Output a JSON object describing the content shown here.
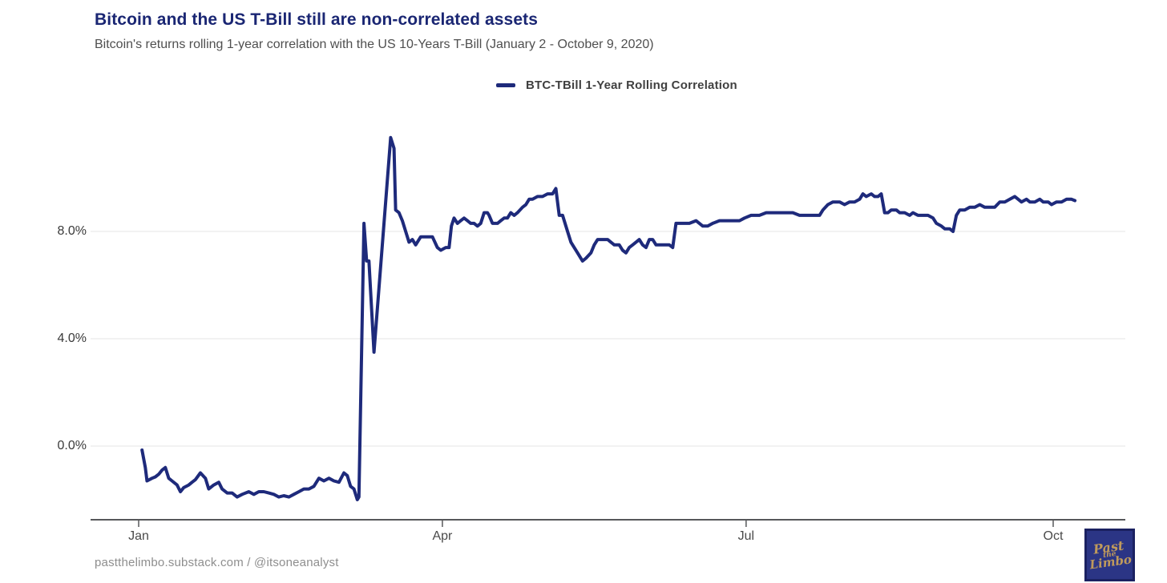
{
  "chart_data": {
    "type": "line",
    "title": "Bitcoin and the US T-Bill still are non-correlated assets",
    "subtitle": "Bitcoin's returns rolling 1-year correlation with the US 10-Years T-Bill (January 2 - October 9, 2020)",
    "x_unit": "day_of_year_2020",
    "xlabel": "",
    "ylabel": "",
    "ylim": [
      -2.8,
      12.1
    ],
    "xlim_days": [
      1,
      296
    ],
    "grid": "horizontal-only",
    "gridline_color": "#e9e9e9",
    "axis_color": "#57585a",
    "line_color": "#1e2a7b",
    "legend_position": "top-center",
    "xticks": [
      {
        "label": "Jan",
        "day": 1
      },
      {
        "label": "Apr",
        "day": 92
      },
      {
        "label": "Jul",
        "day": 183
      },
      {
        "label": "Oct",
        "day": 275
      }
    ],
    "yticks": [
      {
        "label": "8.0%",
        "value": 8
      },
      {
        "label": "4.0%",
        "value": 4
      },
      {
        "label": "0.0%",
        "value": 0
      }
    ],
    "series": [
      {
        "name": "BTC-TBill 1-Year Rolling Correlation",
        "color": "#1e2a7b",
        "points": [
          [
            2,
            -0.15
          ],
          [
            3,
            -0.8
          ],
          [
            3.5,
            -1.3
          ],
          [
            5,
            -1.2
          ],
          [
            6,
            -1.15
          ],
          [
            7,
            -1.05
          ],
          [
            8,
            -0.9
          ],
          [
            9,
            -0.8
          ],
          [
            10,
            -1.2
          ],
          [
            11,
            -1.3
          ],
          [
            12.5,
            -1.45
          ],
          [
            13.5,
            -1.7
          ],
          [
            14.5,
            -1.55
          ],
          [
            16,
            -1.45
          ],
          [
            17,
            -1.35
          ],
          [
            18,
            -1.25
          ],
          [
            19.5,
            -1.0
          ],
          [
            21,
            -1.2
          ],
          [
            22,
            -1.6
          ],
          [
            23.5,
            -1.45
          ],
          [
            25,
            -1.35
          ],
          [
            26,
            -1.6
          ],
          [
            27.5,
            -1.75
          ],
          [
            29,
            -1.75
          ],
          [
            30.5,
            -1.9
          ],
          [
            32,
            -1.8
          ],
          [
            34,
            -1.7
          ],
          [
            35.5,
            -1.8
          ],
          [
            37,
            -1.7
          ],
          [
            38.5,
            -1.7
          ],
          [
            40,
            -1.75
          ],
          [
            41.5,
            -1.8
          ],
          [
            43,
            -1.9
          ],
          [
            44.5,
            -1.85
          ],
          [
            46,
            -1.9
          ],
          [
            47.5,
            -1.8
          ],
          [
            49,
            -1.7
          ],
          [
            50.5,
            -1.6
          ],
          [
            52,
            -1.6
          ],
          [
            53.5,
            -1.5
          ],
          [
            55,
            -1.2
          ],
          [
            56.5,
            -1.3
          ],
          [
            58,
            -1.2
          ],
          [
            59.5,
            -1.3
          ],
          [
            61,
            -1.35
          ],
          [
            62.5,
            -1.0
          ],
          [
            63.5,
            -1.1
          ],
          [
            64.5,
            -1.5
          ],
          [
            65.5,
            -1.6
          ],
          [
            66.5,
            -2.0
          ],
          [
            67,
            -1.9
          ],
          [
            68.5,
            8.3
          ],
          [
            69.3,
            6.9
          ],
          [
            70,
            6.9
          ],
          [
            71.5,
            3.5
          ],
          [
            76.5,
            11.5
          ],
          [
            77.5,
            11.1
          ],
          [
            78,
            8.8
          ],
          [
            79,
            8.7
          ],
          [
            80,
            8.4
          ],
          [
            82,
            7.6
          ],
          [
            83,
            7.7
          ],
          [
            84,
            7.5
          ],
          [
            85.5,
            7.8
          ],
          [
            87,
            7.8
          ],
          [
            89,
            7.8
          ],
          [
            90.5,
            7.4
          ],
          [
            91.5,
            7.3
          ],
          [
            93,
            7.4
          ],
          [
            94,
            7.4
          ],
          [
            94.7,
            8.2
          ],
          [
            95.5,
            8.5
          ],
          [
            96.5,
            8.3
          ],
          [
            97.5,
            8.4
          ],
          [
            98.5,
            8.5
          ],
          [
            99.5,
            8.4
          ],
          [
            100.5,
            8.3
          ],
          [
            101.5,
            8.3
          ],
          [
            102.5,
            8.2
          ],
          [
            103.5,
            8.3
          ],
          [
            104.5,
            8.7
          ],
          [
            105.5,
            8.7
          ],
          [
            106,
            8.6
          ],
          [
            107,
            8.3
          ],
          [
            108.5,
            8.3
          ],
          [
            109.5,
            8.4
          ],
          [
            110.5,
            8.5
          ],
          [
            111.5,
            8.5
          ],
          [
            112.5,
            8.7
          ],
          [
            113.5,
            8.6
          ],
          [
            114.5,
            8.7
          ],
          [
            116,
            8.9
          ],
          [
            117,
            9.0
          ],
          [
            118,
            9.2
          ],
          [
            119,
            9.2
          ],
          [
            120.5,
            9.3
          ],
          [
            122,
            9.3
          ],
          [
            123.5,
            9.4
          ],
          [
            125,
            9.4
          ],
          [
            126,
            9.6
          ],
          [
            127,
            8.6
          ],
          [
            128,
            8.6
          ],
          [
            129.5,
            8.0
          ],
          [
            130.5,
            7.6
          ],
          [
            131.5,
            7.4
          ],
          [
            132.5,
            7.2
          ],
          [
            134,
            6.9
          ],
          [
            135,
            7.0
          ],
          [
            136.5,
            7.2
          ],
          [
            137.5,
            7.5
          ],
          [
            138.5,
            7.7
          ],
          [
            140,
            7.7
          ],
          [
            141.5,
            7.7
          ],
          [
            142.5,
            7.6
          ],
          [
            143.5,
            7.5
          ],
          [
            145,
            7.5
          ],
          [
            146,
            7.3
          ],
          [
            147,
            7.2
          ],
          [
            148,
            7.4
          ],
          [
            149,
            7.5
          ],
          [
            150,
            7.6
          ],
          [
            151,
            7.7
          ],
          [
            152,
            7.5
          ],
          [
            153,
            7.4
          ],
          [
            154,
            7.7
          ],
          [
            155,
            7.7
          ],
          [
            156,
            7.5
          ],
          [
            157,
            7.5
          ],
          [
            158.5,
            7.5
          ],
          [
            160,
            7.5
          ],
          [
            161,
            7.4
          ],
          [
            162,
            8.3
          ],
          [
            164,
            8.3
          ],
          [
            166,
            8.3
          ],
          [
            168,
            8.4
          ],
          [
            170,
            8.2
          ],
          [
            171.5,
            8.2
          ],
          [
            173,
            8.3
          ],
          [
            175,
            8.4
          ],
          [
            177,
            8.4
          ],
          [
            179,
            8.4
          ],
          [
            181,
            8.4
          ],
          [
            182.5,
            8.5
          ],
          [
            184.5,
            8.6
          ],
          [
            187,
            8.6
          ],
          [
            189,
            8.7
          ],
          [
            191,
            8.7
          ],
          [
            193,
            8.7
          ],
          [
            195,
            8.7
          ],
          [
            197,
            8.7
          ],
          [
            199,
            8.6
          ],
          [
            201,
            8.6
          ],
          [
            203,
            8.6
          ],
          [
            205,
            8.6
          ],
          [
            206,
            8.8
          ],
          [
            207.5,
            9.0
          ],
          [
            209,
            9.1
          ],
          [
            211,
            9.1
          ],
          [
            212.5,
            9.0
          ],
          [
            214,
            9.1
          ],
          [
            215.5,
            9.1
          ],
          [
            217,
            9.2
          ],
          [
            218,
            9.4
          ],
          [
            219,
            9.3
          ],
          [
            220.5,
            9.4
          ],
          [
            221.5,
            9.3
          ],
          [
            222.5,
            9.3
          ],
          [
            223.5,
            9.4
          ],
          [
            224.5,
            8.7
          ],
          [
            225.5,
            8.7
          ],
          [
            226.5,
            8.8
          ],
          [
            228,
            8.8
          ],
          [
            229,
            8.7
          ],
          [
            230.5,
            8.7
          ],
          [
            232,
            8.6
          ],
          [
            233,
            8.7
          ],
          [
            234.5,
            8.6
          ],
          [
            236,
            8.6
          ],
          [
            237.5,
            8.6
          ],
          [
            239,
            8.5
          ],
          [
            240,
            8.3
          ],
          [
            241.5,
            8.2
          ],
          [
            242.5,
            8.1
          ],
          [
            244,
            8.1
          ],
          [
            245,
            8.0
          ],
          [
            246,
            8.6
          ],
          [
            247,
            8.8
          ],
          [
            248.5,
            8.8
          ],
          [
            250,
            8.9
          ],
          [
            251.5,
            8.9
          ],
          [
            253,
            9.0
          ],
          [
            254.5,
            8.9
          ],
          [
            256,
            8.9
          ],
          [
            257.5,
            8.9
          ],
          [
            259,
            9.1
          ],
          [
            260.5,
            9.1
          ],
          [
            262,
            9.2
          ],
          [
            263.5,
            9.3
          ],
          [
            264.5,
            9.2
          ],
          [
            265.5,
            9.1
          ],
          [
            267,
            9.2
          ],
          [
            268,
            9.1
          ],
          [
            269.5,
            9.1
          ],
          [
            271,
            9.2
          ],
          [
            272,
            9.1
          ],
          [
            273.5,
            9.1
          ],
          [
            274.5,
            9.0
          ],
          [
            276,
            9.1
          ],
          [
            277.5,
            9.1
          ],
          [
            279,
            9.2
          ],
          [
            280.5,
            9.2
          ],
          [
            281.5,
            9.15
          ]
        ]
      }
    ]
  },
  "footer": {
    "credit": "pastthelimbo.substack.com / @itsoneanalyst"
  },
  "logo": {
    "line1": "Past",
    "line2": "the",
    "line3": "Limbo",
    "bg_color": "#2b3585",
    "border_color": "#1b2161",
    "text_color": "#bf9a5c"
  }
}
